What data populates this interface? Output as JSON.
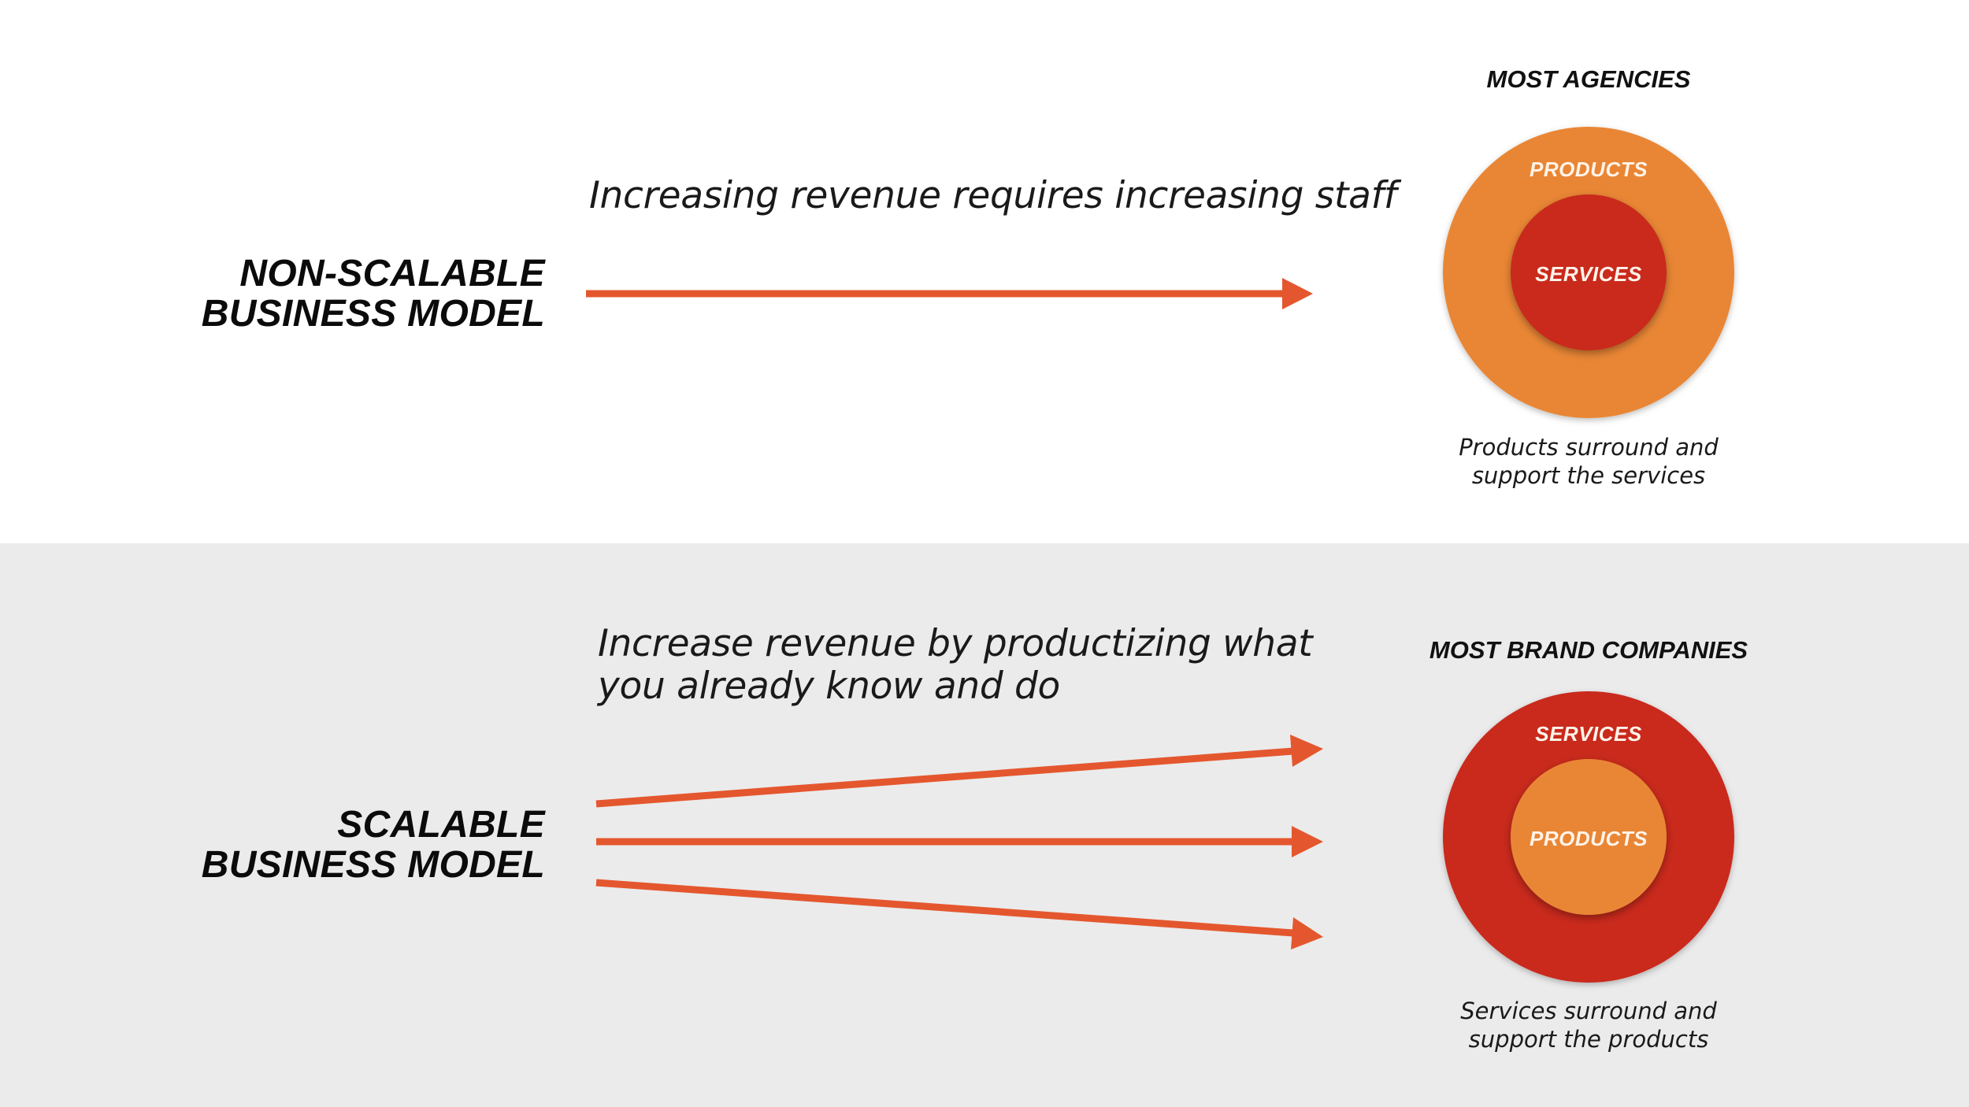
{
  "top": {
    "model_label": [
      "NON-SCALABLE",
      "BUSINESS MODEL"
    ],
    "tagline": [
      "Increasing revenue requires increasing staff"
    ],
    "circle": {
      "title": "MOST AGENCIES",
      "outer_label": "PRODUCTS",
      "inner_label": "SERVICES",
      "outer_color": "#e98635",
      "inner_color": "#c92b1f"
    },
    "caption": [
      "Products surround and",
      "support the services"
    ]
  },
  "bottom": {
    "model_label": [
      "SCALABLE",
      "BUSINESS MODEL"
    ],
    "tagline": [
      "Increase revenue by productizing what",
      "you already know and do"
    ],
    "circle": {
      "title": "MOST BRAND COMPANIES",
      "outer_label": "SERVICES",
      "inner_label": "PRODUCTS",
      "outer_color": "#c92b1f",
      "inner_color": "#e98635"
    },
    "caption": [
      "Services surround and",
      "support the products"
    ]
  },
  "colors": {
    "arrow": "#e4572e",
    "bottom_background": "#ebebeb",
    "top_background": "#ffffff"
  }
}
